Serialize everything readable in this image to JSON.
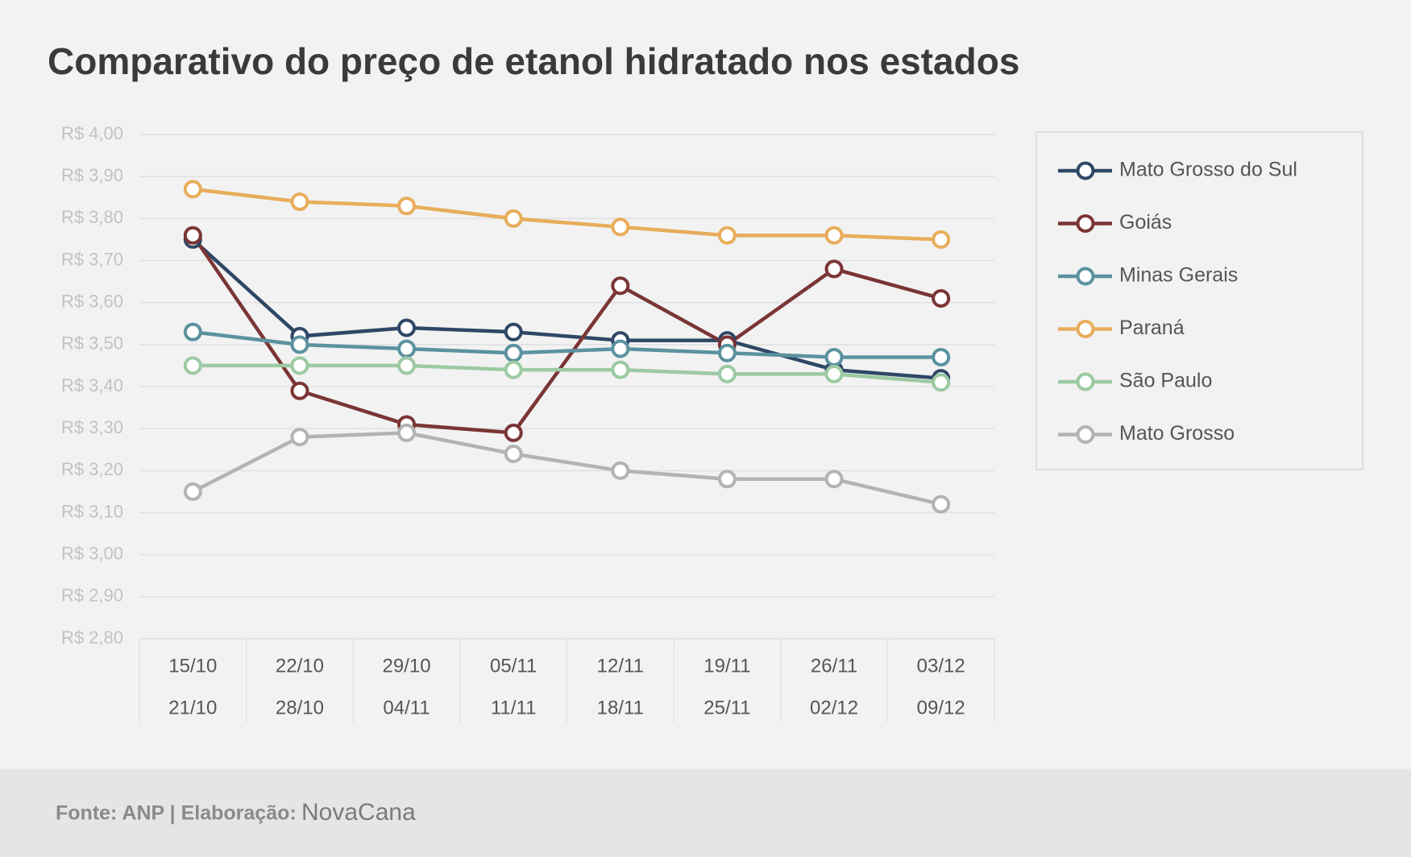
{
  "chart_data": {
    "type": "line",
    "title": "Comparativo do preço de etanol hidratado nos estados",
    "categories": [
      [
        "15/10",
        "21/10"
      ],
      [
        "22/10",
        "28/10"
      ],
      [
        "29/10",
        "04/11"
      ],
      [
        "05/11",
        "11/11"
      ],
      [
        "12/11",
        "18/11"
      ],
      [
        "19/11",
        "25/11"
      ],
      [
        "26/11",
        "02/12"
      ],
      [
        "03/12",
        "09/12"
      ]
    ],
    "series": [
      {
        "name": "Mato Grosso do Sul",
        "color": "#2e4766",
        "values": [
          3.75,
          3.52,
          3.54,
          3.53,
          3.51,
          3.51,
          3.44,
          3.42
        ]
      },
      {
        "name": "Goiás",
        "color": "#7a3535",
        "values": [
          3.76,
          3.39,
          3.31,
          3.29,
          3.64,
          3.5,
          3.68,
          3.61
        ]
      },
      {
        "name": "Minas Gerais",
        "color": "#5b929f",
        "values": [
          3.53,
          3.5,
          3.49,
          3.48,
          3.49,
          3.48,
          3.47,
          3.47
        ]
      },
      {
        "name": "Paraná",
        "color": "#e8ad5b",
        "values": [
          3.87,
          3.84,
          3.83,
          3.8,
          3.78,
          3.76,
          3.76,
          3.75
        ]
      },
      {
        "name": "São Paulo",
        "color": "#9ccaa3",
        "values": [
          3.45,
          3.45,
          3.45,
          3.44,
          3.44,
          3.43,
          3.43,
          3.41
        ]
      },
      {
        "name": "Mato Grosso",
        "color": "#b3b3b3",
        "values": [
          3.15,
          3.28,
          3.29,
          3.24,
          3.2,
          3.18,
          3.18,
          3.12
        ]
      }
    ],
    "ylim": [
      2.8,
      4.0
    ],
    "yticks": [
      {
        "value": 2.8,
        "label": "R$ 2,80"
      },
      {
        "value": 2.9,
        "label": "R$ 2,90"
      },
      {
        "value": 3.0,
        "label": "R$ 3,00"
      },
      {
        "value": 3.1,
        "label": "R$ 3,10"
      },
      {
        "value": 3.2,
        "label": "R$ 3,20"
      },
      {
        "value": 3.3,
        "label": "R$ 3,30"
      },
      {
        "value": 3.4,
        "label": "R$ 3,40"
      },
      {
        "value": 3.5,
        "label": "R$ 3,50"
      },
      {
        "value": 3.6,
        "label": "R$ 3,60"
      },
      {
        "value": 3.7,
        "label": "R$ 3,70"
      },
      {
        "value": 3.8,
        "label": "R$ 3,80"
      },
      {
        "value": 3.9,
        "label": "R$ 3,90"
      },
      {
        "value": 4.0,
        "label": "R$ 4,00"
      }
    ],
    "grid": true,
    "legend": "right",
    "source": "Fonte: ANP | Elaboração:",
    "brand": "NovaCana"
  }
}
